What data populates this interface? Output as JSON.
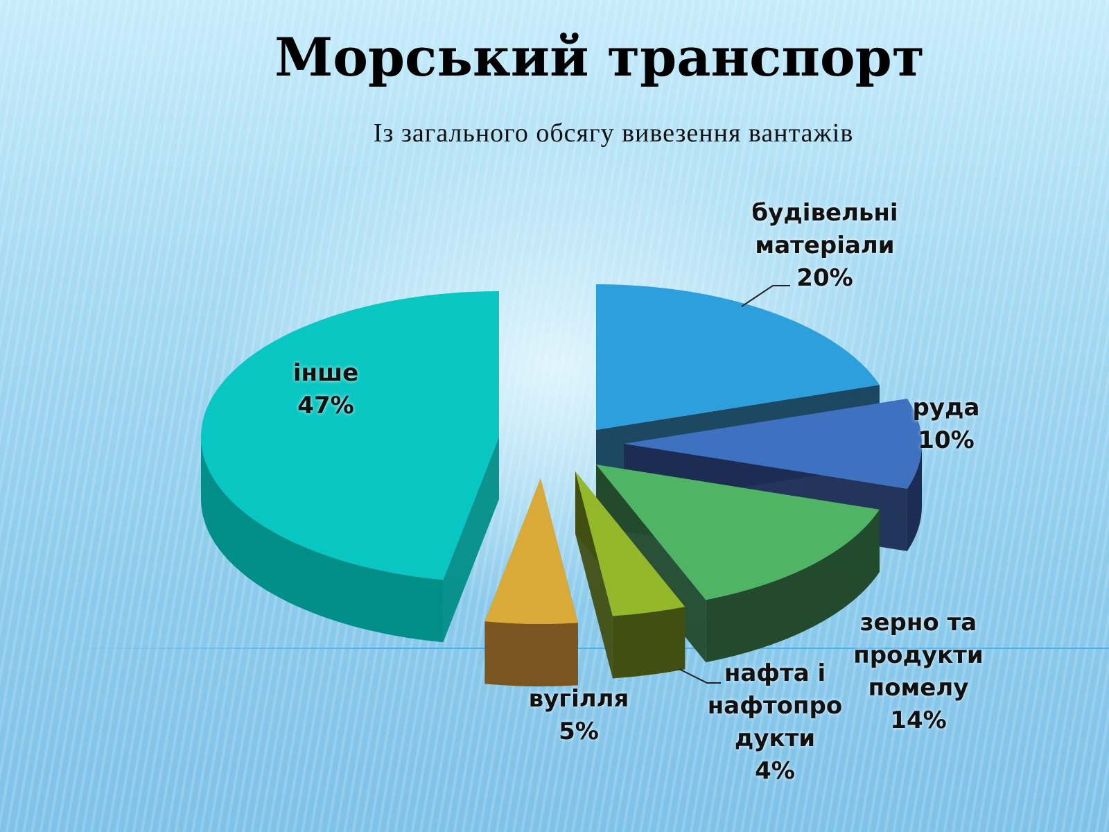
{
  "title": "Морський транспорт",
  "subtitle": "Із загального обсягу вивезення вантажів",
  "chart_data": {
    "type": "pie",
    "title": "Морський транспорт",
    "subtitle": "Із загального обсягу вивезення вантажів",
    "slices": [
      {
        "label_lines": [
          "будівельні",
          "матеріали"
        ],
        "value": 20,
        "value_text": "20%",
        "color": "#2c9fdc",
        "side": "#143f5a"
      },
      {
        "label_lines": [
          "руда"
        ],
        "value": 10,
        "value_text": "10%",
        "color": "#3e71bf",
        "side": "#1c2c52"
      },
      {
        "label_lines": [
          "зерно та",
          "продукти",
          "помелу"
        ],
        "value": 14,
        "value_text": "14%",
        "color": "#4fb463",
        "side": "#234a2c"
      },
      {
        "label_lines": [
          "нафта і",
          "нафтопро",
          "дукти"
        ],
        "value": 4,
        "value_text": "4%",
        "color": "#93b829",
        "side": "#414f12"
      },
      {
        "label_lines": [
          "вугілля"
        ],
        "value": 5,
        "value_text": "5%",
        "color": "#d9aa37",
        "side": "#7b5520"
      },
      {
        "label_lines": [
          "інше"
        ],
        "value": 47,
        "value_text": "47%",
        "color": "#08c6c1",
        "side": "#028e88"
      }
    ]
  }
}
